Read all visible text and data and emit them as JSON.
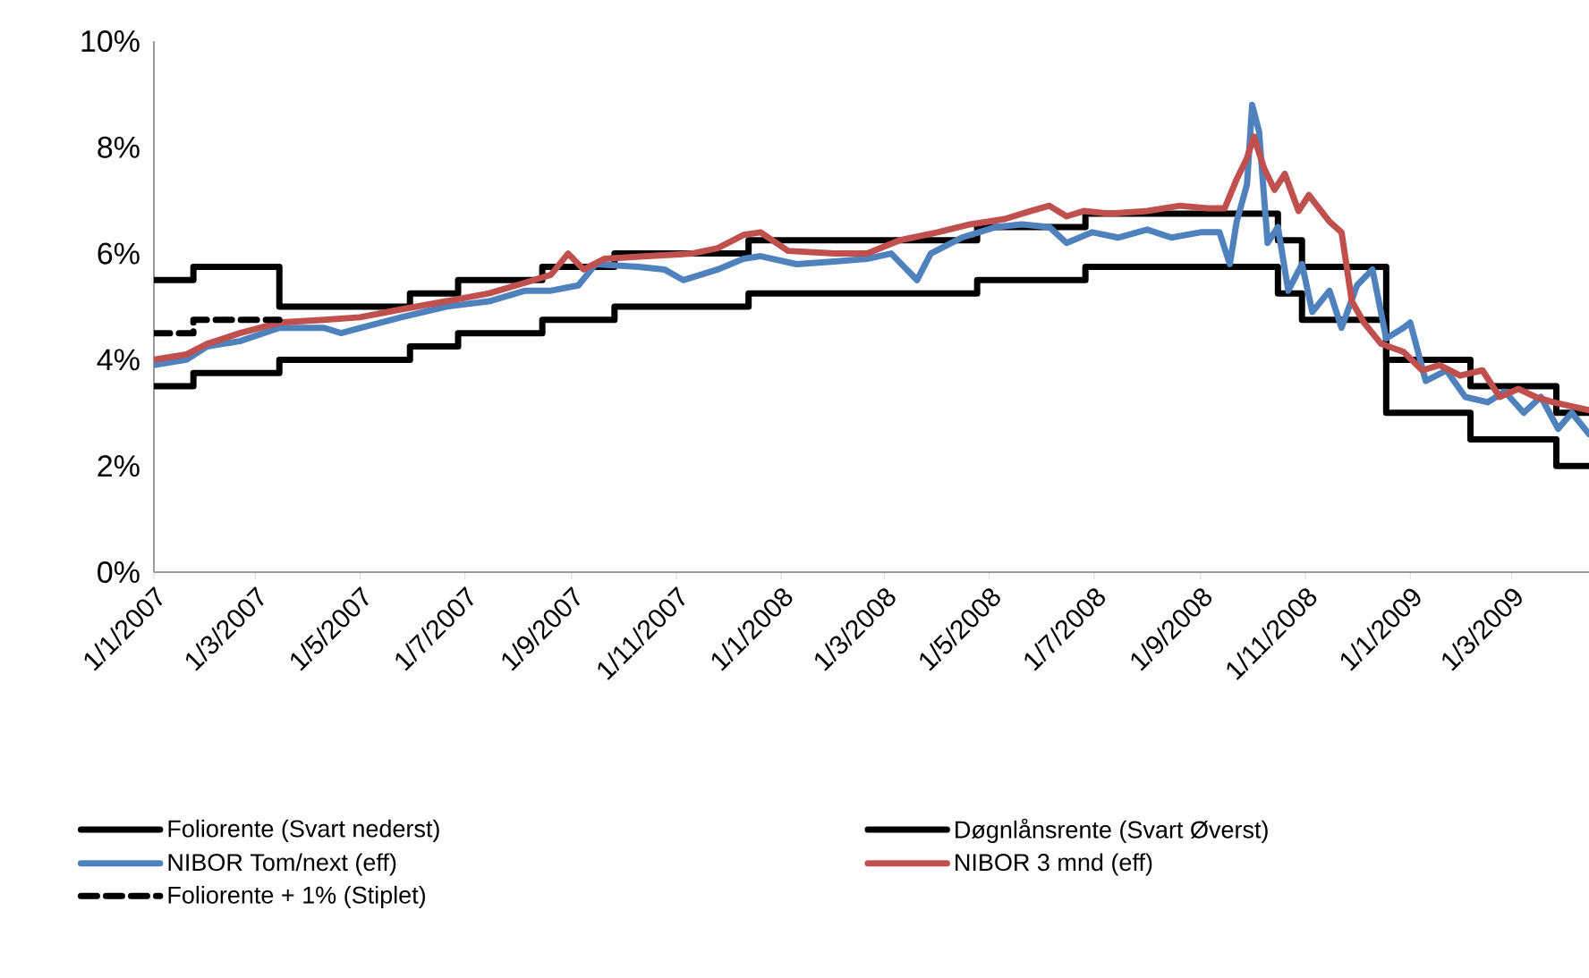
{
  "chart_data": {
    "type": "line",
    "xlim": [
      "2007-01-01",
      "2009-04-15"
    ],
    "ylim": [
      0,
      10
    ],
    "yticks": [
      {
        "value": 0,
        "label": "0%"
      },
      {
        "value": 2,
        "label": "2%"
      },
      {
        "value": 4,
        "label": "4%"
      },
      {
        "value": 6,
        "label": "6%"
      },
      {
        "value": 8,
        "label": "8%"
      },
      {
        "value": 10,
        "label": "10%"
      }
    ],
    "xticks": [
      {
        "value": "2007-01-01",
        "label": "1/1/2007"
      },
      {
        "value": "2007-03-01",
        "label": "1/3/2007"
      },
      {
        "value": "2007-05-01",
        "label": "1/5/2007"
      },
      {
        "value": "2007-07-01",
        "label": "1/7/2007"
      },
      {
        "value": "2007-09-01",
        "label": "1/9/2007"
      },
      {
        "value": "2007-11-01",
        "label": "1/11/2007"
      },
      {
        "value": "2008-01-01",
        "label": "1/1/2008"
      },
      {
        "value": "2008-03-01",
        "label": "1/3/2008"
      },
      {
        "value": "2008-05-01",
        "label": "1/5/2008"
      },
      {
        "value": "2008-07-01",
        "label": "1/7/2008"
      },
      {
        "value": "2008-09-01",
        "label": "1/9/2008"
      },
      {
        "value": "2008-11-01",
        "label": "1/11/2008"
      },
      {
        "value": "2009-01-01",
        "label": "1/1/2009"
      },
      {
        "value": "2009-03-01",
        "label": "1/3/2009"
      }
    ],
    "grid": false,
    "legend": "bottom",
    "series": [
      {
        "name": "Foliorente (Svart nederst)",
        "type": "step",
        "color": "#000000",
        "x": [
          "2007-01-01",
          "2007-01-24",
          "2007-03-15",
          "2007-05-30",
          "2007-06-27",
          "2007-08-15",
          "2007-09-26",
          "2007-12-13",
          "2008-04-24",
          "2008-06-26",
          "2008-10-16",
          "2008-10-30",
          "2008-12-18",
          "2009-02-05",
          "2009-03-27",
          "2009-04-15"
        ],
        "values": [
          3.5,
          3.75,
          4.0,
          4.25,
          4.5,
          4.75,
          5.0,
          5.25,
          5.5,
          5.75,
          5.25,
          4.75,
          3.0,
          2.5,
          2.0,
          2.0
        ]
      },
      {
        "name": "Døgnlånsrente (Svart Øverst)",
        "type": "step",
        "color": "#000000",
        "x": [
          "2007-01-01",
          "2007-01-24",
          "2007-03-15",
          "2007-05-30",
          "2007-06-27",
          "2007-08-15",
          "2007-09-26",
          "2007-12-13",
          "2008-04-24",
          "2008-06-26",
          "2008-10-16",
          "2008-10-30",
          "2008-12-18",
          "2009-02-05",
          "2009-03-27",
          "2009-04-15"
        ],
        "values": [
          5.5,
          5.75,
          5.0,
          5.25,
          5.5,
          5.75,
          6.0,
          6.25,
          6.5,
          6.75,
          6.25,
          5.75,
          4.0,
          3.5,
          3.0,
          3.0
        ]
      },
      {
        "name": "NIBOR Tom/next (eff)",
        "type": "line",
        "color": "#4f81bd",
        "x": [
          "2007-01-01",
          "2007-01-20",
          "2007-02-01",
          "2007-02-20",
          "2007-03-15",
          "2007-04-10",
          "2007-04-20",
          "2007-05-01",
          "2007-05-25",
          "2007-06-20",
          "2007-07-15",
          "2007-08-05",
          "2007-08-20",
          "2007-09-05",
          "2007-09-15",
          "2007-10-10",
          "2007-10-25",
          "2007-11-05",
          "2007-11-25",
          "2007-12-10",
          "2007-12-20",
          "2008-01-10",
          "2008-02-01",
          "2008-02-20",
          "2008-03-05",
          "2008-03-20",
          "2008-03-28",
          "2008-04-15",
          "2008-05-05",
          "2008-05-20",
          "2008-06-05",
          "2008-06-15",
          "2008-06-30",
          "2008-07-15",
          "2008-08-01",
          "2008-08-15",
          "2008-09-01",
          "2008-09-12",
          "2008-09-18",
          "2008-09-22",
          "2008-09-28",
          "2008-10-01",
          "2008-10-05",
          "2008-10-10",
          "2008-10-16",
          "2008-10-22",
          "2008-10-30",
          "2008-11-05",
          "2008-11-15",
          "2008-11-22",
          "2008-12-01",
          "2008-12-10",
          "2008-12-18",
          "2008-12-28",
          "2009-01-01",
          "2009-01-10",
          "2009-01-22",
          "2009-02-02",
          "2009-02-15",
          "2009-02-25",
          "2009-03-08",
          "2009-03-18",
          "2009-03-28",
          "2009-04-05",
          "2009-04-15"
        ],
        "values": [
          3.9,
          4.0,
          4.25,
          4.35,
          4.6,
          4.6,
          4.5,
          4.6,
          4.8,
          5.0,
          5.1,
          5.3,
          5.3,
          5.4,
          5.8,
          5.75,
          5.7,
          5.5,
          5.7,
          5.9,
          5.95,
          5.8,
          5.85,
          5.9,
          6.0,
          5.5,
          6.0,
          6.3,
          6.5,
          6.55,
          6.5,
          6.2,
          6.4,
          6.3,
          6.45,
          6.3,
          6.4,
          6.4,
          5.8,
          6.6,
          7.3,
          8.8,
          8.3,
          6.2,
          6.5,
          5.3,
          5.8,
          4.9,
          5.3,
          4.6,
          5.4,
          5.7,
          4.4,
          4.6,
          4.7,
          3.6,
          3.8,
          3.3,
          3.2,
          3.4,
          3.0,
          3.3,
          2.7,
          3.0,
          2.6
        ]
      },
      {
        "name": "NIBOR 3 mnd (eff)",
        "type": "line",
        "color": "#c0504d",
        "x": [
          "2007-01-01",
          "2007-01-20",
          "2007-02-01",
          "2007-02-20",
          "2007-03-15",
          "2007-04-10",
          "2007-05-01",
          "2007-05-25",
          "2007-06-20",
          "2007-07-15",
          "2007-08-05",
          "2007-08-20",
          "2007-08-30",
          "2007-09-08",
          "2007-09-20",
          "2007-10-15",
          "2007-11-10",
          "2007-11-25",
          "2007-12-10",
          "2007-12-20",
          "2008-01-05",
          "2008-02-01",
          "2008-02-20",
          "2008-03-10",
          "2008-04-01",
          "2008-04-20",
          "2008-05-10",
          "2008-05-25",
          "2008-06-05",
          "2008-06-15",
          "2008-06-25",
          "2008-07-10",
          "2008-08-01",
          "2008-08-20",
          "2008-09-05",
          "2008-09-15",
          "2008-09-22",
          "2008-09-28",
          "2008-10-02",
          "2008-10-08",
          "2008-10-14",
          "2008-10-20",
          "2008-10-28",
          "2008-11-03",
          "2008-11-15",
          "2008-11-22",
          "2008-11-28",
          "2008-12-05",
          "2008-12-15",
          "2008-12-28",
          "2009-01-08",
          "2009-01-18",
          "2009-01-30",
          "2009-02-12",
          "2009-02-22",
          "2009-03-05",
          "2009-03-15",
          "2009-03-25",
          "2009-04-15"
        ],
        "values": [
          4.0,
          4.1,
          4.3,
          4.5,
          4.7,
          4.75,
          4.8,
          4.95,
          5.1,
          5.25,
          5.45,
          5.6,
          6.0,
          5.7,
          5.9,
          5.95,
          6.0,
          6.1,
          6.35,
          6.4,
          6.05,
          6.0,
          6.0,
          6.25,
          6.4,
          6.55,
          6.65,
          6.8,
          6.9,
          6.7,
          6.8,
          6.75,
          6.8,
          6.9,
          6.85,
          6.85,
          7.4,
          7.8,
          8.2,
          7.6,
          7.2,
          7.5,
          6.8,
          7.1,
          6.6,
          6.4,
          5.1,
          4.7,
          4.3,
          4.15,
          3.8,
          3.9,
          3.7,
          3.8,
          3.3,
          3.45,
          3.3,
          3.2,
          3.05
        ]
      },
      {
        "name": "Foliorente + 1%  (Stiplet)",
        "type": "step",
        "line_style": "dashed",
        "color": "#000000",
        "x": [
          "2007-01-01",
          "2007-01-24",
          "2007-03-15"
        ],
        "values": [
          4.5,
          4.75,
          4.75
        ]
      }
    ]
  }
}
